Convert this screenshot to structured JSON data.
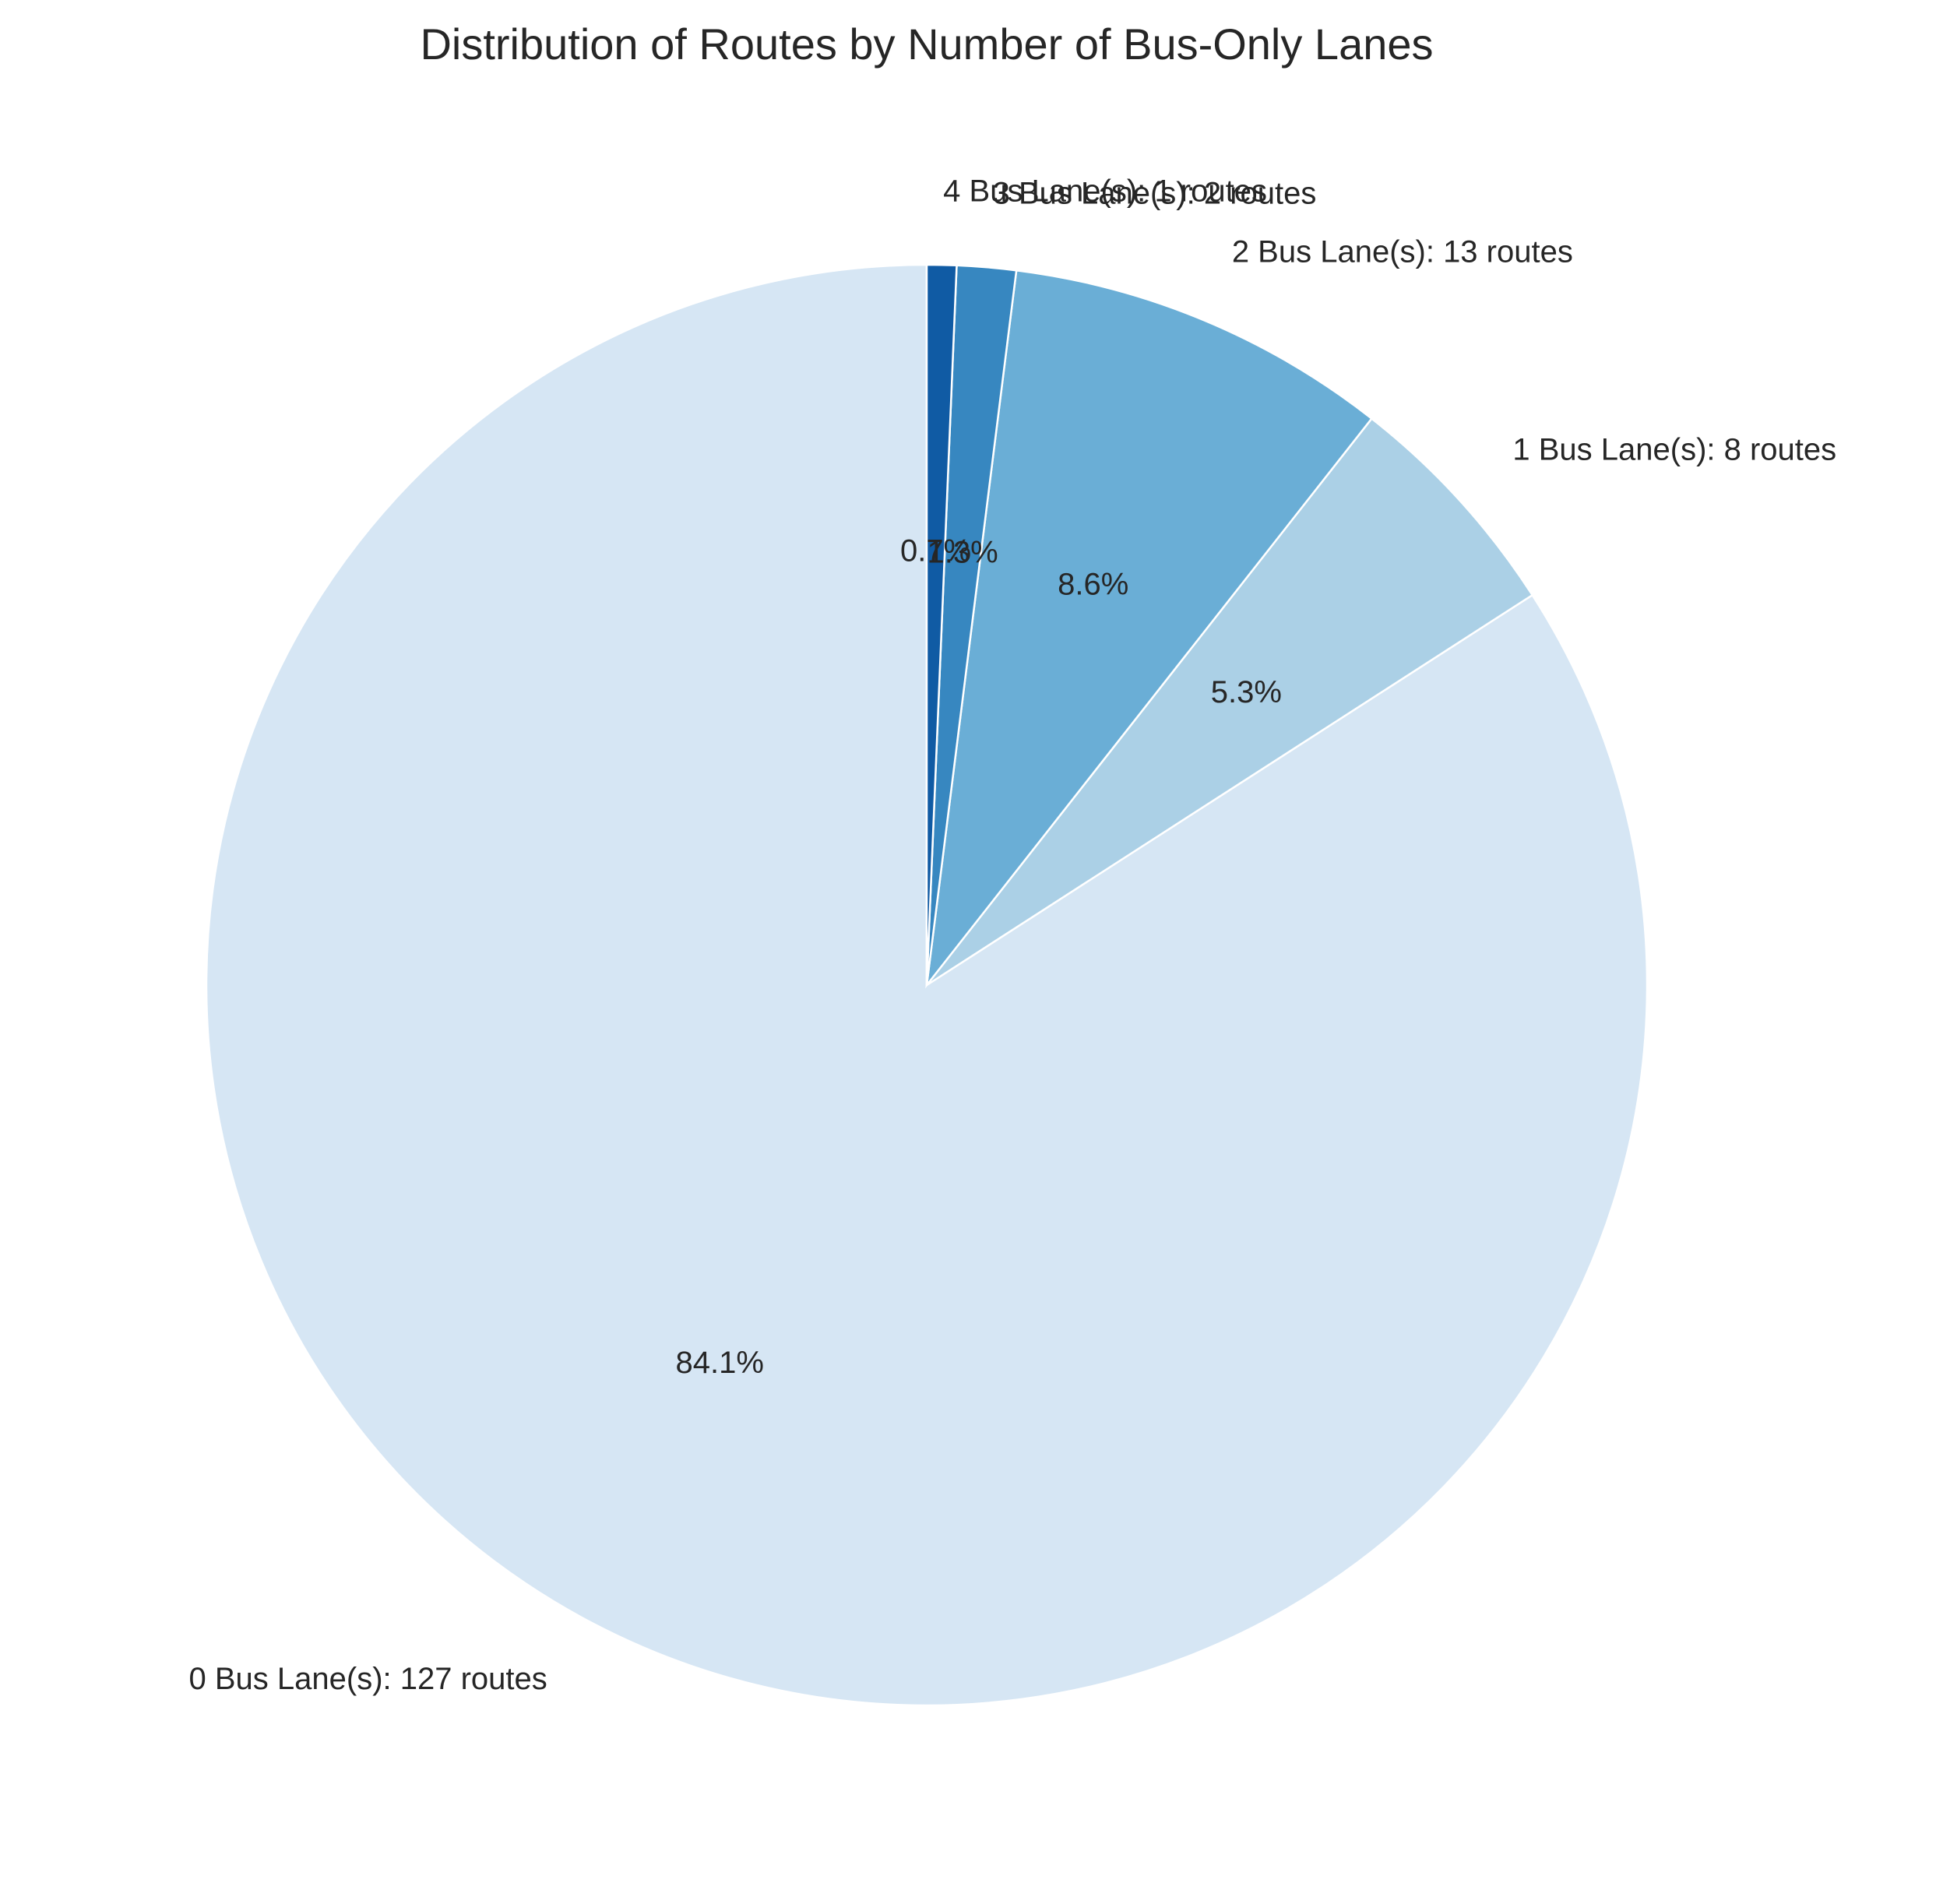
{
  "chart_data": {
    "type": "pie",
    "title": "Distribution of Routes by Number of Bus-Only Lanes",
    "start_angle_deg": 90,
    "direction": "counterclockwise",
    "slices": [
      {
        "label": "0 Bus Lane(s): 127 routes",
        "value": 127,
        "pct_label": "84.1%",
        "color": "#d6e6f4"
      },
      {
        "label": "1 Bus Lane(s): 8 routes",
        "value": 8,
        "pct_label": "5.3%",
        "color": "#abd0e6"
      },
      {
        "label": "2 Bus Lane(s): 13 routes",
        "value": 13,
        "pct_label": "8.6%",
        "color": "#6aaed6"
      },
      {
        "label": "3 Bus Lane(s): 2 routes",
        "value": 2,
        "pct_label": "1.3%",
        "color": "#3787c0"
      },
      {
        "label": "4 Bus Lane(s): 1 routes",
        "value": 1,
        "pct_label": "0.7%",
        "color": "#105ba4"
      }
    ]
  }
}
